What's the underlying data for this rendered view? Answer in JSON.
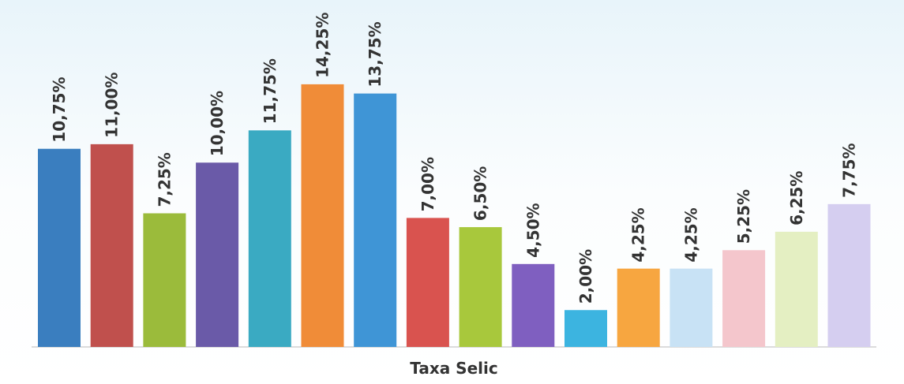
{
  "chart_data": {
    "type": "bar",
    "x_label": "Taxa Selic",
    "values": [
      10.75,
      11,
      7.25,
      10,
      11.75,
      14.25,
      13.75,
      7,
      6.5,
      4.5,
      2,
      4.25,
      4.25,
      5.25,
      6.25,
      7.75
    ],
    "value_labels": [
      "10,75%",
      "11,00%",
      "7,25%",
      "10,00%",
      "11,75%",
      "14,25%",
      "13,75%",
      "7,00%",
      "6,50%",
      "4,50%",
      "2,00%",
      "4,25%",
      "4,25%",
      "5,25%",
      "6,25%",
      "7,75%"
    ],
    "colors": [
      "#3a7ebf",
      "#c0504d",
      "#9bbb3b",
      "#6a5aa8",
      "#3aaac2",
      "#f08c38",
      "#3f95d6",
      "#d9534f",
      "#a8c83c",
      "#7f5fc0",
      "#3cb4e0",
      "#f7a640",
      "#c8e2f5",
      "#f4c6cc",
      "#e4efc2",
      "#d5cef0"
    ],
    "ylim": [
      0,
      16
    ]
  }
}
